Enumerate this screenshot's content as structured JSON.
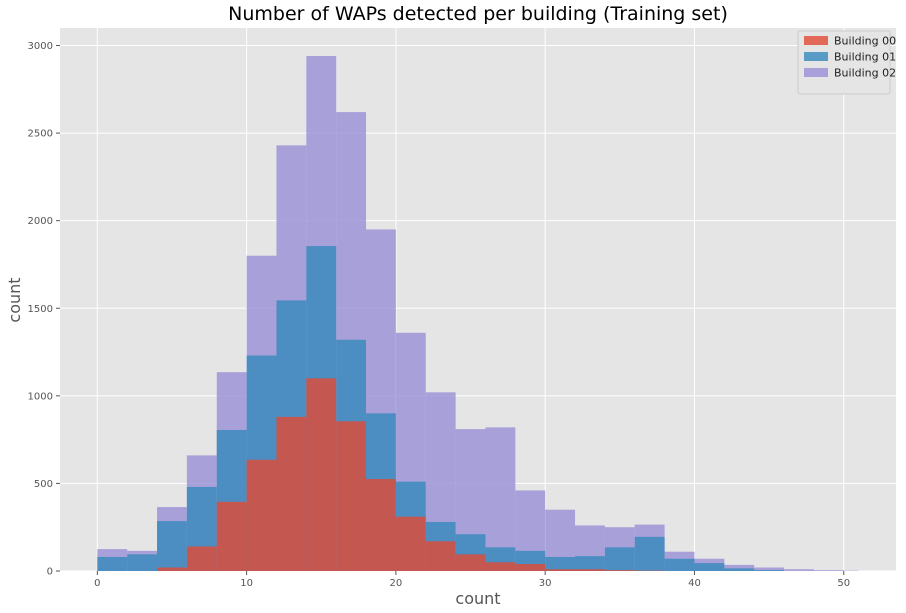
{
  "chart_data": {
    "type": "bar",
    "histogram": true,
    "stacked": false,
    "title": "Number of WAPs detected per building (Training set)",
    "xlabel": "count",
    "ylabel": "count",
    "xlim": [
      -2.5,
      53.5
    ],
    "ylim": [
      0,
      3100
    ],
    "xticks": [
      0,
      10,
      20,
      30,
      40,
      50
    ],
    "yticks": [
      0,
      500,
      1000,
      1500,
      2000,
      2500,
      3000
    ],
    "grid": true,
    "legend": "top-right",
    "bins": [
      [
        0,
        2
      ],
      [
        2,
        4
      ],
      [
        4,
        6
      ],
      [
        6,
        8
      ],
      [
        8,
        10
      ],
      [
        10,
        12
      ],
      [
        12,
        14
      ],
      [
        14,
        16
      ],
      [
        16,
        18
      ],
      [
        18,
        20
      ],
      [
        20,
        22
      ],
      [
        22,
        24
      ],
      [
        24,
        26
      ],
      [
        26,
        28
      ],
      [
        28,
        30
      ],
      [
        30,
        32
      ],
      [
        32,
        34
      ],
      [
        34,
        36
      ],
      [
        36,
        38
      ],
      [
        38,
        40
      ],
      [
        40,
        42
      ],
      [
        42,
        44
      ],
      [
        44,
        46
      ],
      [
        46,
        48
      ],
      [
        48,
        50
      ],
      [
        50,
        51
      ]
    ],
    "series": [
      {
        "name": "Building 02",
        "color": "#988ED5",
        "values": [
          125,
          115,
          365,
          660,
          1135,
          1800,
          2430,
          2940,
          2620,
          1950,
          1360,
          1020,
          810,
          820,
          460,
          350,
          260,
          250,
          265,
          110,
          70,
          35,
          20,
          10,
          5,
          2
        ]
      },
      {
        "name": "Building 01",
        "color": "#348ABD",
        "values": [
          80,
          95,
          285,
          480,
          805,
          1230,
          1545,
          1855,
          1320,
          900,
          510,
          280,
          210,
          135,
          115,
          80,
          85,
          135,
          195,
          70,
          45,
          15,
          5,
          0,
          0,
          0
        ]
      },
      {
        "name": "Building 00",
        "color": "#E24A33",
        "values": [
          0,
          0,
          20,
          140,
          395,
          635,
          880,
          1100,
          855,
          525,
          310,
          170,
          95,
          50,
          40,
          10,
          10,
          5,
          2,
          0,
          0,
          0,
          0,
          0,
          0,
          0
        ]
      }
    ],
    "legend_order": [
      "Building 00",
      "Building 01",
      "Building 02"
    ]
  }
}
